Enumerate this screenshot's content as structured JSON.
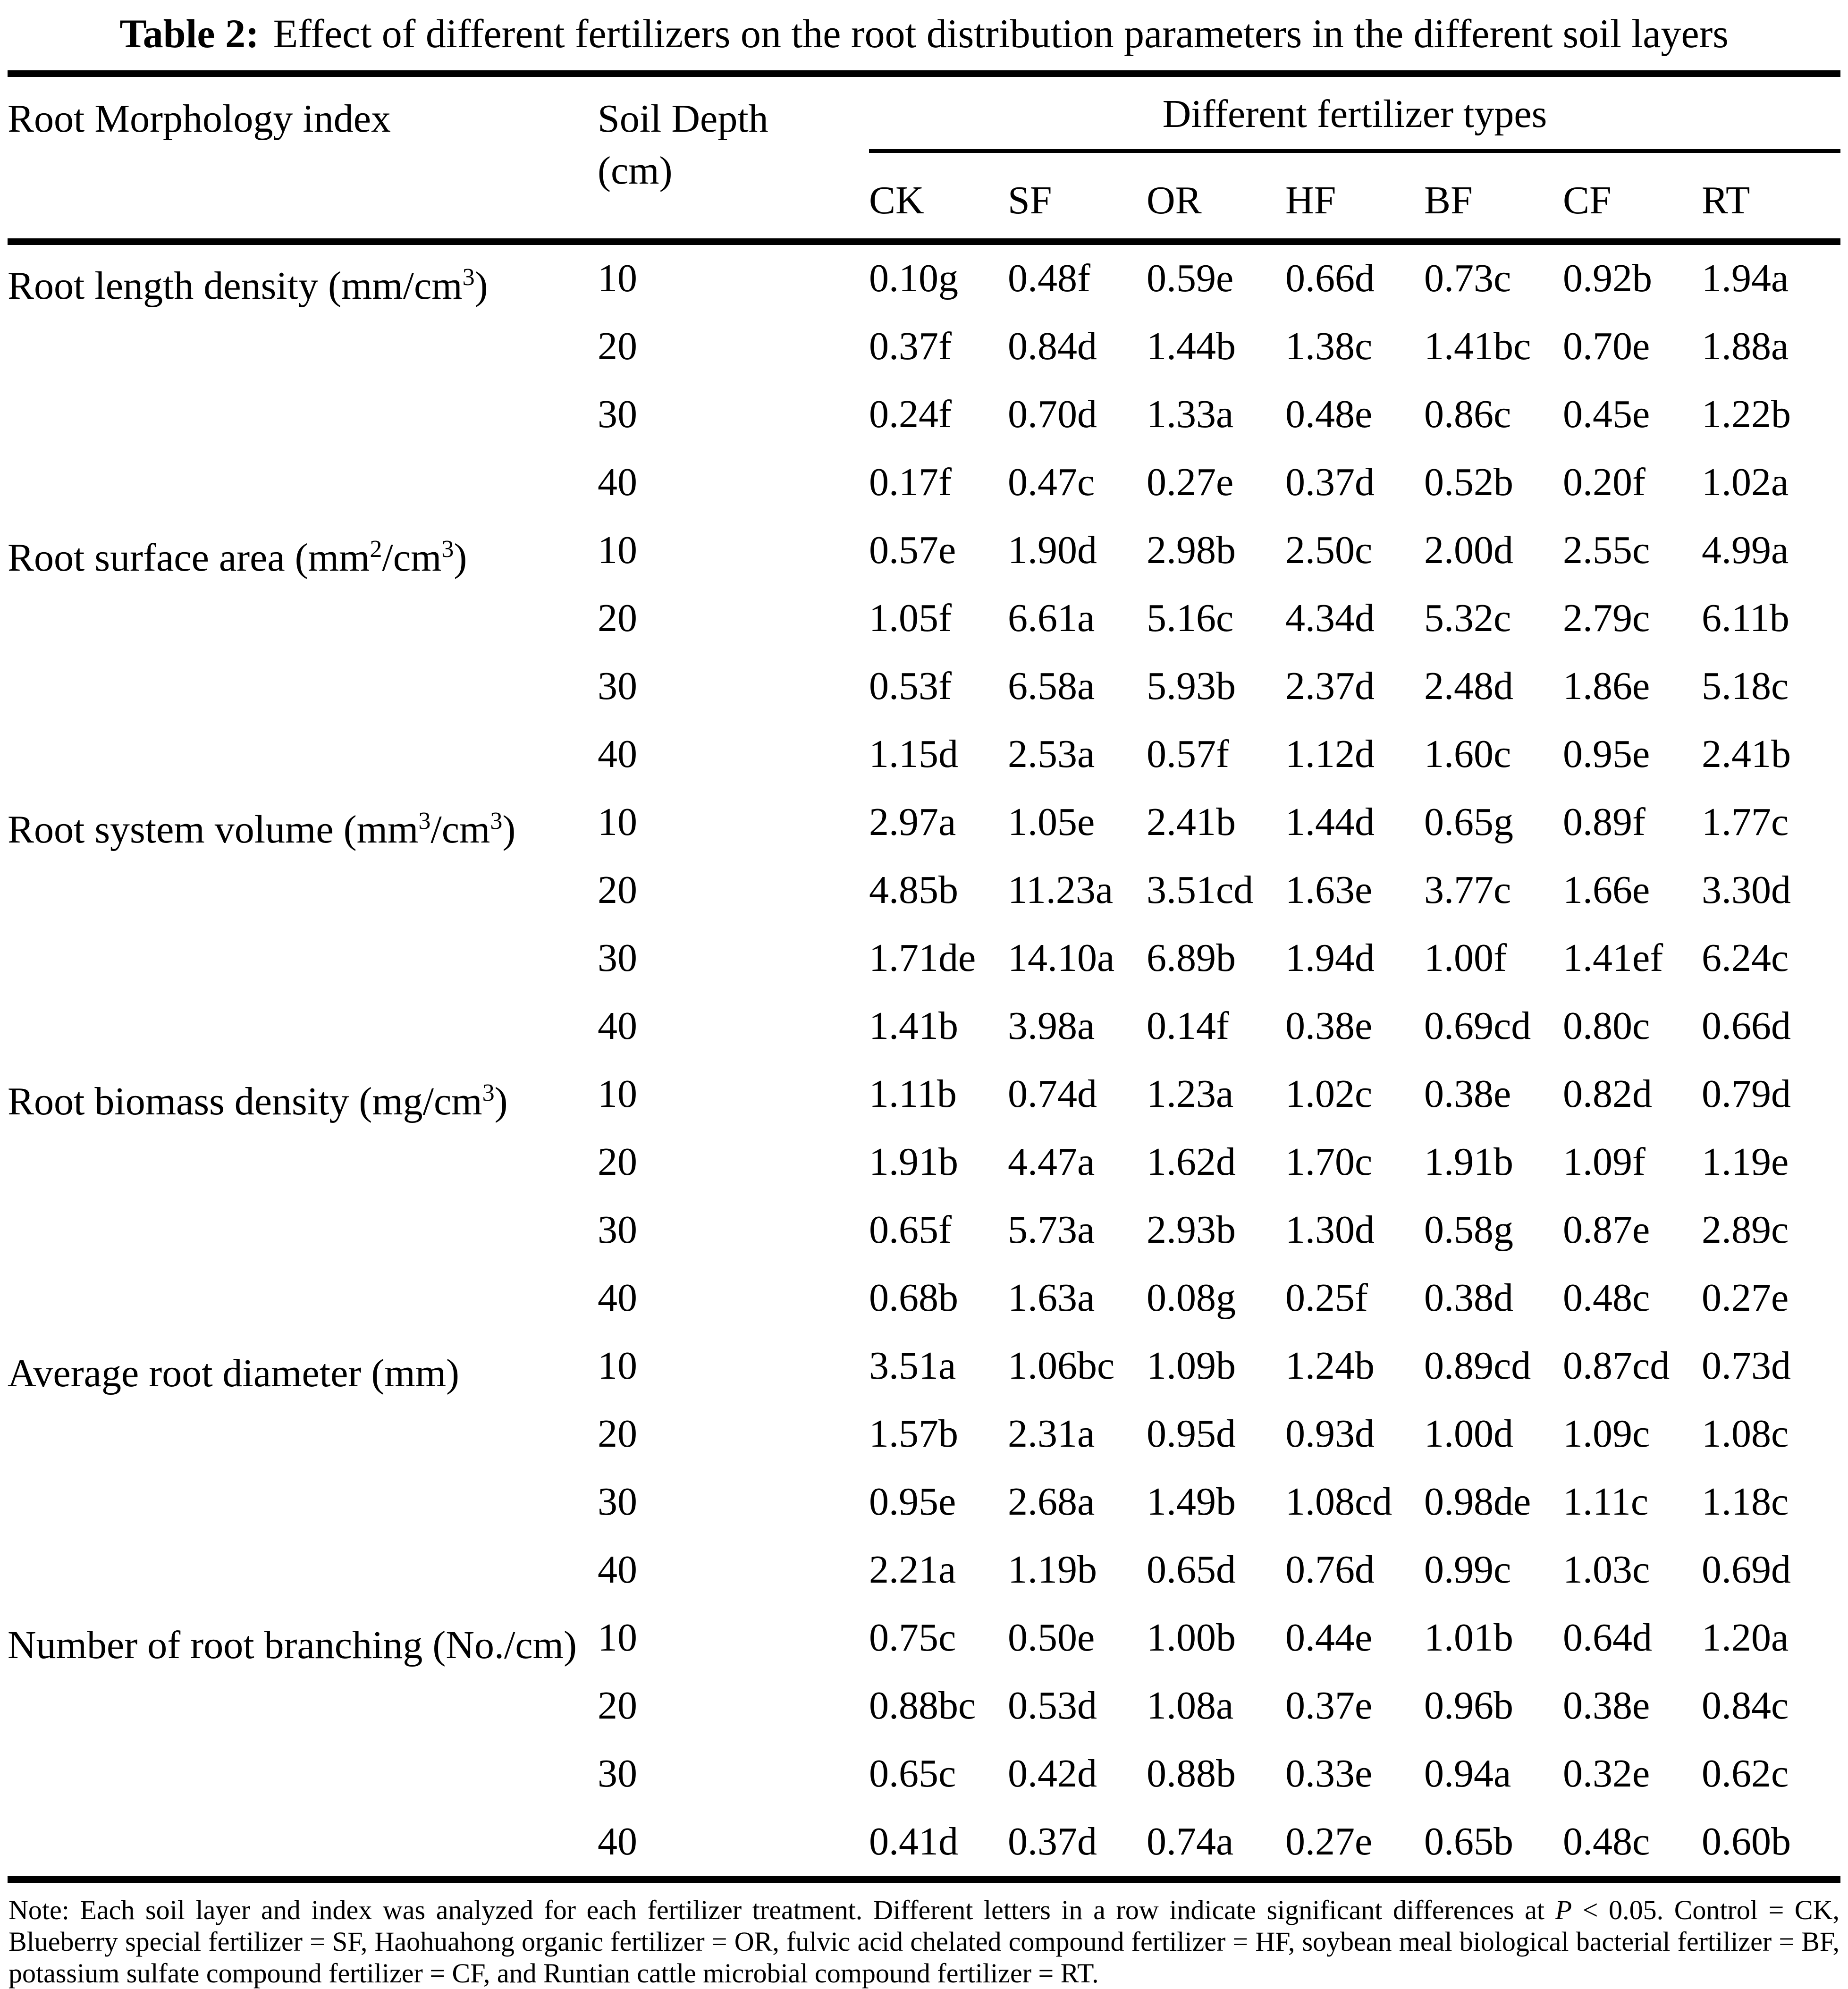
{
  "title": {
    "label": "Table 2:",
    "text": "Effect of different fertilizers on the root distribution parameters in the different soil layers"
  },
  "header": {
    "index_label": "Root Morphology index",
    "depth_label_line1": "Soil Depth",
    "depth_label_line2": "(cm)",
    "group_label": "Different fertilizer types",
    "fertilizers": [
      "CK",
      "SF",
      "OR",
      "HF",
      "BF",
      "CF",
      "RT"
    ]
  },
  "sections": [
    {
      "label_html": "Root length density (mm/cm<sup>3</sup>)",
      "rows": [
        {
          "depth": "10",
          "values": [
            "0.10g",
            "0.48f",
            "0.59e",
            "0.66d",
            "0.73c",
            "0.92b",
            "1.94a"
          ]
        },
        {
          "depth": "20",
          "values": [
            "0.37f",
            "0.84d",
            "1.44b",
            "1.38c",
            "1.41bc",
            "0.70e",
            "1.88a"
          ]
        },
        {
          "depth": "30",
          "values": [
            "0.24f",
            "0.70d",
            "1.33a",
            "0.48e",
            "0.86c",
            "0.45e",
            "1.22b"
          ]
        },
        {
          "depth": "40",
          "values": [
            "0.17f",
            "0.47c",
            "0.27e",
            "0.37d",
            "0.52b",
            "0.20f",
            "1.02a"
          ]
        }
      ]
    },
    {
      "label_html": "Root surface area (mm<sup>2</sup>/cm<sup>3</sup>)",
      "rows": [
        {
          "depth": "10",
          "values": [
            "0.57e",
            "1.90d",
            "2.98b",
            "2.50c",
            "2.00d",
            "2.55c",
            "4.99a"
          ]
        },
        {
          "depth": "20",
          "values": [
            "1.05f",
            "6.61a",
            "5.16c",
            "4.34d",
            "5.32c",
            "2.79c",
            "6.11b"
          ]
        },
        {
          "depth": "30",
          "values": [
            "0.53f",
            "6.58a",
            "5.93b",
            "2.37d",
            "2.48d",
            "1.86e",
            "5.18c"
          ]
        },
        {
          "depth": "40",
          "values": [
            "1.15d",
            "2.53a",
            "0.57f",
            "1.12d",
            "1.60c",
            "0.95e",
            "2.41b"
          ]
        }
      ]
    },
    {
      "label_html": "Root system volume (mm<sup>3</sup>/cm<sup>3</sup>)",
      "rows": [
        {
          "depth": "10",
          "values": [
            "2.97a",
            "1.05e",
            "2.41b",
            "1.44d",
            "0.65g",
            "0.89f",
            "1.77c"
          ]
        },
        {
          "depth": "20",
          "values": [
            "4.85b",
            "11.23a",
            "3.51cd",
            "1.63e",
            "3.77c",
            "1.66e",
            "3.30d"
          ]
        },
        {
          "depth": "30",
          "values": [
            "1.71de",
            "14.10a",
            "6.89b",
            "1.94d",
            "1.00f",
            "1.41ef",
            "6.24c"
          ]
        },
        {
          "depth": "40",
          "values": [
            "1.41b",
            "3.98a",
            "0.14f",
            "0.38e",
            "0.69cd",
            "0.80c",
            "0.66d"
          ]
        }
      ]
    },
    {
      "label_html": "Root biomass density (mg/cm<sup>3</sup>)",
      "rows": [
        {
          "depth": "10",
          "values": [
            "1.11b",
            "0.74d",
            "1.23a",
            "1.02c",
            "0.38e",
            "0.82d",
            "0.79d"
          ]
        },
        {
          "depth": "20",
          "values": [
            "1.91b",
            "4.47a",
            "1.62d",
            "1.70c",
            "1.91b",
            "1.09f",
            "1.19e"
          ]
        },
        {
          "depth": "30",
          "values": [
            "0.65f",
            "5.73a",
            "2.93b",
            "1.30d",
            "0.58g",
            "0.87e",
            "2.89c"
          ]
        },
        {
          "depth": "40",
          "values": [
            "0.68b",
            "1.63a",
            "0.08g",
            "0.25f",
            "0.38d",
            "0.48c",
            "0.27e"
          ]
        }
      ]
    },
    {
      "label_html": "Average root diameter (mm)",
      "rows": [
        {
          "depth": "10",
          "values": [
            "3.51a",
            "1.06bc",
            "1.09b",
            "1.24b",
            "0.89cd",
            "0.87cd",
            "0.73d"
          ]
        },
        {
          "depth": "20",
          "values": [
            "1.57b",
            "2.31a",
            "0.95d",
            "0.93d",
            "1.00d",
            "1.09c",
            "1.08c"
          ]
        },
        {
          "depth": "30",
          "values": [
            "0.95e",
            "2.68a",
            "1.49b",
            "1.08cd",
            "0.98de",
            "1.11c",
            "1.18c"
          ]
        },
        {
          "depth": "40",
          "values": [
            "2.21a",
            "1.19b",
            "0.65d",
            "0.76d",
            "0.99c",
            "1.03c",
            "0.69d"
          ]
        }
      ]
    },
    {
      "label_html": "Number of root branching (No./cm)",
      "rows": [
        {
          "depth": "10",
          "values": [
            "0.75c",
            "0.50e",
            "1.00b",
            "0.44e",
            "1.01b",
            "0.64d",
            "1.20a"
          ]
        },
        {
          "depth": "20",
          "values": [
            "0.88bc",
            "0.53d",
            "1.08a",
            "0.37e",
            "0.96b",
            "0.38e",
            "0.84c"
          ]
        },
        {
          "depth": "30",
          "values": [
            "0.65c",
            "0.42d",
            "0.88b",
            "0.33e",
            "0.94a",
            "0.32e",
            "0.62c"
          ]
        },
        {
          "depth": "40",
          "values": [
            "0.41d",
            "0.37d",
            "0.74a",
            "0.27e",
            "0.65b",
            "0.48c",
            "0.60b"
          ]
        }
      ]
    }
  ],
  "note_html": "Note: Each soil layer and index was analyzed for each fertilizer treatment. Different letters in a row indicate significant differences at <i>P</i> < 0.05. Control = CK, Blueberry special fertilizer = SF, Haohuahong organic fertilizer = OR, fulvic acid chelated compound fertilizer = HF, soybean meal biological bacterial fertilizer = BF, potassium sulfate compound fertilizer = CF, and Runtian cattle microbial compound fertilizer = RT."
}
